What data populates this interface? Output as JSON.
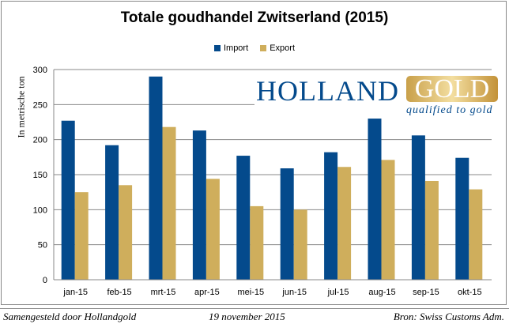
{
  "chart_data": {
    "type": "bar",
    "title": "Totale goudhandel Zwitserland (2015)",
    "ylabel": "In metrische ton",
    "xlabel": "",
    "ylim": [
      0,
      300
    ],
    "yticks": [
      0,
      50,
      100,
      150,
      200,
      250,
      300
    ],
    "grid": true,
    "legend_position": "top",
    "categories": [
      "jan-15",
      "feb-15",
      "mrt-15",
      "apr-15",
      "mei-15",
      "jun-15",
      "jul-15",
      "aug-15",
      "sep-15",
      "okt-15"
    ],
    "series": [
      {
        "name": "Import",
        "color": "#044a8c",
        "values": [
          227,
          192,
          290,
          213,
          177,
          159,
          182,
          230,
          206,
          174
        ]
      },
      {
        "name": "Export",
        "color": "#cfae5c",
        "values": [
          125,
          135,
          218,
          144,
          105,
          100,
          161,
          171,
          141,
          129
        ]
      }
    ]
  },
  "logo": {
    "holland": "HOLLAND",
    "gold": "GOLD",
    "tagline": "qualified to gold"
  },
  "footer": {
    "left": "Samengesteld door Hollandgold",
    "center": "19 november 2015",
    "right": "Bron: Swiss Customs Adm."
  }
}
